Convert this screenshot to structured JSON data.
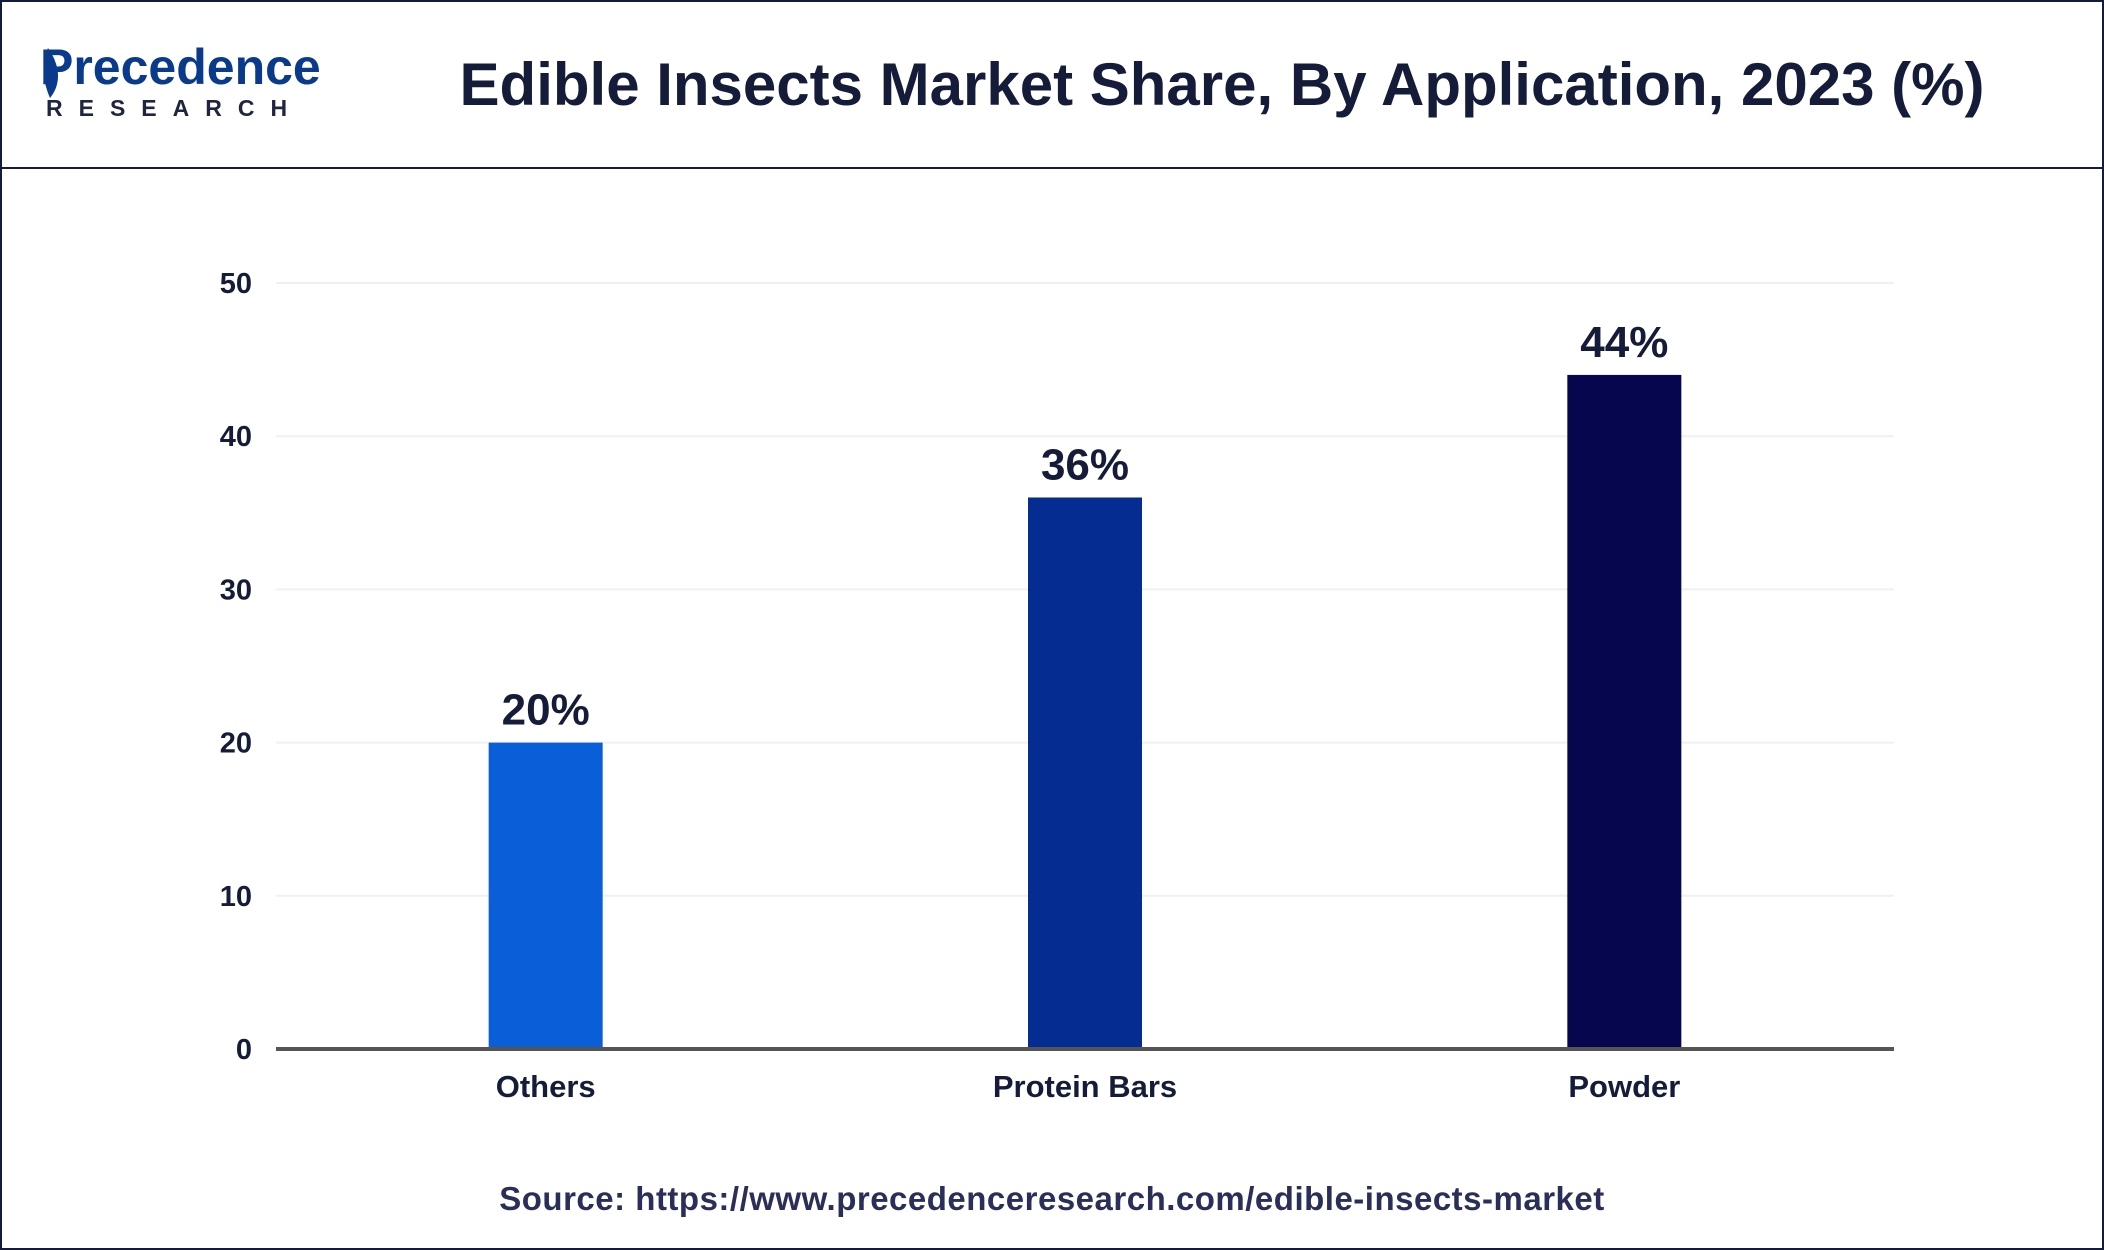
{
  "header": {
    "logo_word": "Precedence",
    "logo_sub": "RESEARCH",
    "title": "Edible Insects Market Share, By Application, 2023 (%)"
  },
  "colors": {
    "border": "#141c3a",
    "text_dark": "#141c3a",
    "logo_blue": "#0a3a8c",
    "bar_others": "#0a5fd8",
    "bar_protein_bars": "#052d91",
    "bar_powder": "#05064d",
    "axis": "#555555",
    "grid": "#f0f0f0"
  },
  "icons": {
    "logo": "precedence-leaf-icon"
  },
  "chart_data": {
    "type": "bar",
    "categories": [
      "Others",
      "Protein Bars",
      "Powder"
    ],
    "values": [
      20,
      36,
      44
    ],
    "value_labels": [
      "20%",
      "36%",
      "44%"
    ],
    "bar_colors": [
      "#0a5fd8",
      "#052d91",
      "#05064d"
    ],
    "ylim": [
      0,
      50
    ],
    "yticks": [
      0,
      10,
      20,
      30,
      40,
      50
    ],
    "grid": true,
    "title": "Edible Insects Market Share, By Application, 2023 (%)",
    "xlabel": "",
    "ylabel": ""
  },
  "footer": {
    "source": "Source: https://www.precedenceresearch.com/edible-insects-market"
  }
}
